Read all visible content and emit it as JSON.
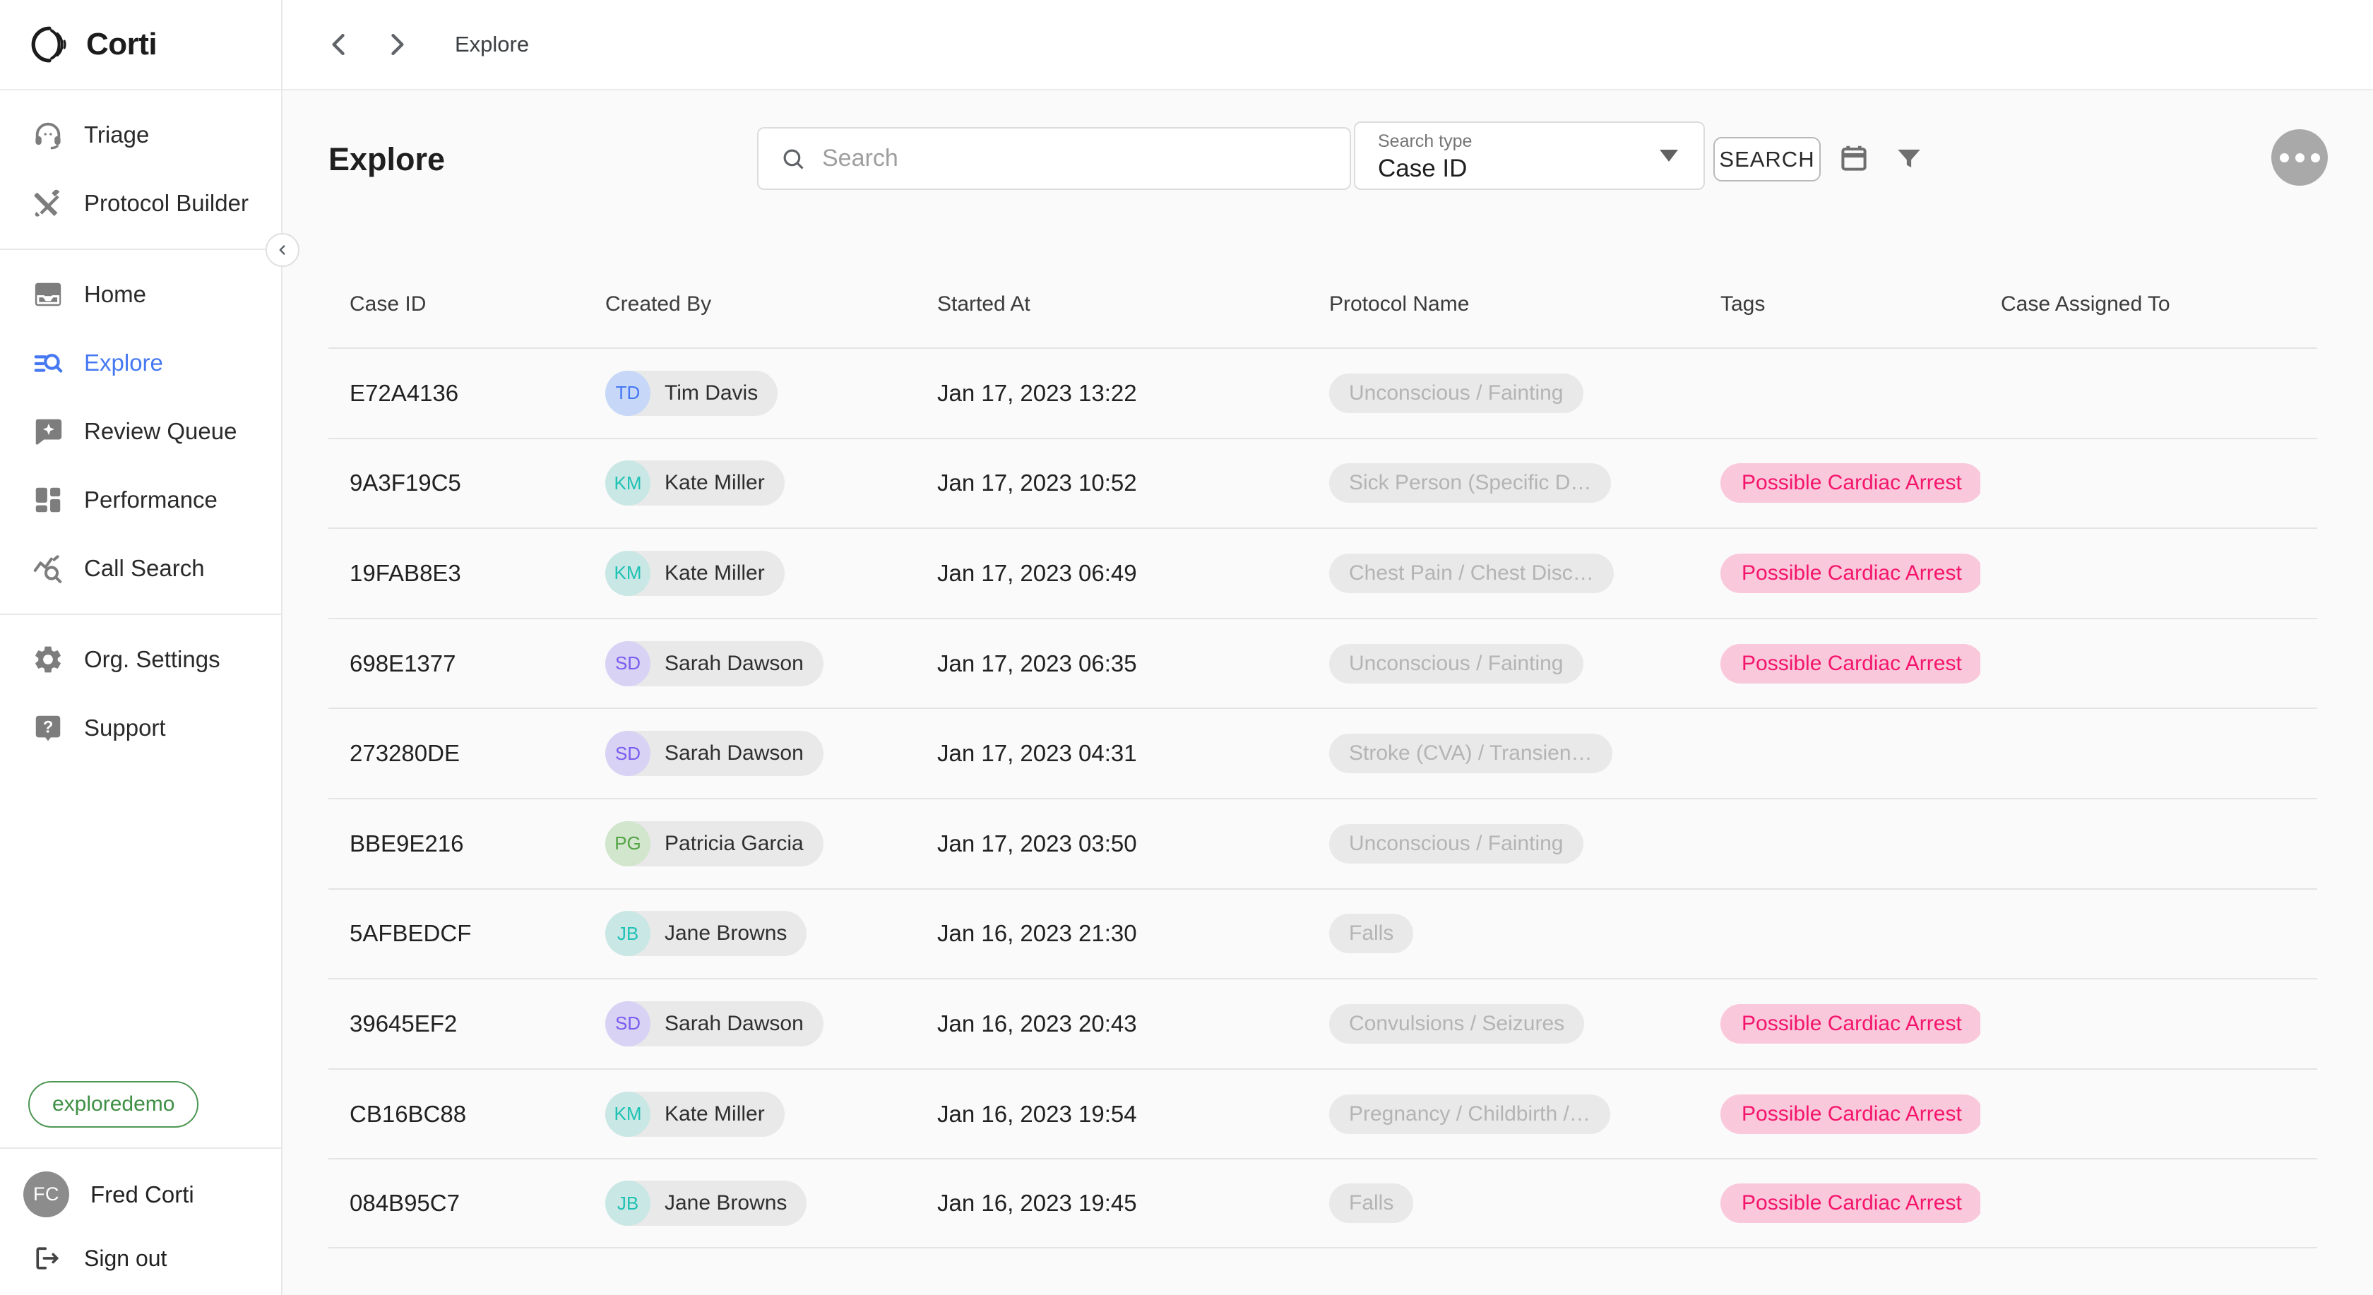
{
  "brand": {
    "name": "Corti"
  },
  "topbar": {
    "breadcrumb": "Explore"
  },
  "sidebar": {
    "sections": [
      {
        "items": [
          {
            "label": "Triage",
            "icon": "headset-icon"
          },
          {
            "label": "Protocol Builder",
            "icon": "tools-icon"
          }
        ]
      },
      {
        "items": [
          {
            "label": "Home",
            "icon": "inbox-icon"
          },
          {
            "label": "Explore",
            "icon": "search-list-icon",
            "active": true
          },
          {
            "label": "Review Queue",
            "icon": "chat-sparkle-icon"
          },
          {
            "label": "Performance",
            "icon": "dashboard-icon"
          },
          {
            "label": "Call Search",
            "icon": "chart-search-icon"
          }
        ]
      },
      {
        "items": [
          {
            "label": "Org. Settings",
            "icon": "gear-icon"
          },
          {
            "label": "Support",
            "icon": "help-icon"
          }
        ]
      }
    ],
    "env_badge": "exploredemo",
    "user": {
      "initials": "FC",
      "name": "Fred Corti"
    },
    "sign_out_label": "Sign out"
  },
  "header": {
    "title": "Explore",
    "search_placeholder": "Search",
    "search_type_label": "Search type",
    "search_type_value": "Case ID",
    "search_button_label": "SEARCH"
  },
  "table": {
    "columns": [
      "Case ID",
      "Created By",
      "Started At",
      "Protocol Name",
      "Tags",
      "Case Assigned To"
    ],
    "rows": [
      {
        "case_id": "E72A4136",
        "created_by": {
          "initials": "TD",
          "name": "Tim Davis",
          "color": "blue"
        },
        "started_at": "Jan 17, 2023 13:22",
        "protocol": "Unconscious / Fainting",
        "tags": [],
        "extra_tag_partial": false,
        "assigned_to": ""
      },
      {
        "case_id": "9A3F19C5",
        "created_by": {
          "initials": "KM",
          "name": "Kate Miller",
          "color": "teal"
        },
        "started_at": "Jan 17, 2023 10:52",
        "protocol": "Sick Person (Specific D…",
        "tags": [
          "Possible Cardiac Arrest"
        ],
        "extra_tag_partial": false,
        "assigned_to": ""
      },
      {
        "case_id": "19FAB8E3",
        "created_by": {
          "initials": "KM",
          "name": "Kate Miller",
          "color": "teal"
        },
        "started_at": "Jan 17, 2023 06:49",
        "protocol": "Chest Pain / Chest Disc…",
        "tags": [
          "Possible Cardiac Arrest"
        ],
        "extra_tag_partial": false,
        "assigned_to": ""
      },
      {
        "case_id": "698E1377",
        "created_by": {
          "initials": "SD",
          "name": "Sarah Dawson",
          "color": "purple"
        },
        "started_at": "Jan 17, 2023 06:35",
        "protocol": "Unconscious / Fainting",
        "tags": [
          "Possible Cardiac Arrest"
        ],
        "extra_tag_partial": false,
        "assigned_to": ""
      },
      {
        "case_id": "273280DE",
        "created_by": {
          "initials": "SD",
          "name": "Sarah Dawson",
          "color": "purple"
        },
        "started_at": "Jan 17, 2023 04:31",
        "protocol": "Stroke (CVA) / Transien…",
        "tags": [],
        "extra_tag_partial": false,
        "assigned_to": ""
      },
      {
        "case_id": "BBE9E216",
        "created_by": {
          "initials": "PG",
          "name": "Patricia Garcia",
          "color": "green"
        },
        "started_at": "Jan 17, 2023 03:50",
        "protocol": "Unconscious / Fainting",
        "tags": [],
        "extra_tag_partial": false,
        "assigned_to": ""
      },
      {
        "case_id": "5AFBEDCF",
        "created_by": {
          "initials": "JB",
          "name": "Jane Browns",
          "color": "teal"
        },
        "started_at": "Jan 16, 2023 21:30",
        "protocol": "Falls",
        "tags": [],
        "extra_tag_partial": false,
        "assigned_to": ""
      },
      {
        "case_id": "39645EF2",
        "created_by": {
          "initials": "SD",
          "name": "Sarah Dawson",
          "color": "purple"
        },
        "started_at": "Jan 16, 2023 20:43",
        "protocol": "Convulsions / Seizures",
        "tags": [
          "Possible Cardiac Arrest"
        ],
        "extra_tag_partial": true,
        "assigned_to": ""
      },
      {
        "case_id": "CB16BC88",
        "created_by": {
          "initials": "KM",
          "name": "Kate Miller",
          "color": "teal"
        },
        "started_at": "Jan 16, 2023 19:54",
        "protocol": "Pregnancy / Childbirth /…",
        "tags": [
          "Possible Cardiac Arrest"
        ],
        "extra_tag_partial": false,
        "assigned_to": ""
      },
      {
        "case_id": "084B95C7",
        "created_by": {
          "initials": "JB",
          "name": "Jane Browns",
          "color": "teal"
        },
        "started_at": "Jan 16, 2023 19:45",
        "protocol": "Falls",
        "tags": [
          "Possible Cardiac Arrest"
        ],
        "extra_tag_partial": false,
        "assigned_to": ""
      }
    ]
  },
  "colors": {
    "accent_blue": "#4678f2",
    "tag_bg": "#f9c9db",
    "tag_text": "#f5146b",
    "chip_bg": "#e9e9e9",
    "chip_text": "#b4b4b4",
    "env_badge_green": "#3e8f44"
  }
}
